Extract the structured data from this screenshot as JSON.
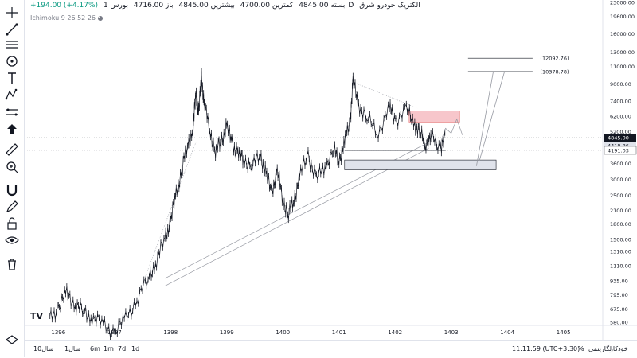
{
  "header": {
    "symbol": "الکتریک خودرو شرق",
    "interval": "1D",
    "exchange": "بورس",
    "open": "باز 4716.00",
    "high": "بیشترین 4845.00",
    "low": "کمترین 4700.00",
    "close": "بسته 4845.00",
    "change": "+194.00 (+4.17%)"
  },
  "indicator": "Ichimoku 9 26 52 26",
  "logo": "TV",
  "bottom": {
    "ranges": [
      "10سال",
      "1سال",
      "6m",
      "1m",
      "7d",
      "1d"
    ],
    "time": "11:11:59 (UTC+3:30)",
    "percent": "%",
    "log": "لگاریتمی",
    "auto": "خودکار"
  },
  "colors": {
    "up": "#131722",
    "price_label_bg": "#131722",
    "resistance_zone": "#f7c6cb",
    "support_zone": "#e0e3eb",
    "projection": "#9598a1"
  },
  "chart_data": {
    "type": "candlestick",
    "y_scale": "log",
    "ylim": [
      580,
      23000
    ],
    "x_tick_labels": [
      "1396",
      "1397",
      "1398",
      "1399",
      "1400",
      "1401",
      "1402",
      "1403",
      "1404",
      "1405"
    ],
    "y_tick_labels": [
      "23000.00",
      "19600.00",
      "16000.00",
      "13000.00",
      "11000.00",
      "9000.00",
      "7400.00",
      "6200.00",
      "5200.00",
      "4418.86",
      "3600.00",
      "3000.00",
      "2500.00",
      "2100.00",
      "1800.00",
      "1500.00",
      "1310.00",
      "1110.00",
      "935.00",
      "795.00",
      "675.00",
      "580.00"
    ],
    "last_price": "4845.00",
    "price_labels": [
      "4845.00",
      "4418.86",
      "4191.03"
    ],
    "target_labels": [
      "(12092.76)",
      "(10378.78)"
    ],
    "annotations": {
      "resistance_zone_range": [
        5800,
        6600
      ],
      "support_zone_range": [
        3350,
        3750
      ],
      "targets": [
        12092.76,
        10378.78
      ]
    },
    "path": [
      [
        1395.85,
        600
      ],
      [
        1396.0,
        700
      ],
      [
        1396.15,
        800
      ],
      [
        1396.3,
        720
      ],
      [
        1396.45,
        650
      ],
      [
        1396.6,
        620
      ],
      [
        1396.8,
        560
      ],
      [
        1397.0,
        520
      ],
      [
        1397.2,
        600
      ],
      [
        1397.4,
        760
      ],
      [
        1397.6,
        950
      ],
      [
        1397.75,
        1200
      ],
      [
        1397.9,
        1500
      ],
      [
        1398.0,
        1900
      ],
      [
        1398.1,
        2500
      ],
      [
        1398.2,
        3400
      ],
      [
        1398.3,
        4400
      ],
      [
        1398.4,
        5400
      ],
      [
        1398.45,
        8000
      ],
      [
        1398.5,
        6500
      ],
      [
        1398.55,
        9600
      ],
      [
        1398.6,
        7200
      ],
      [
        1398.7,
        5200
      ],
      [
        1398.8,
        4200
      ],
      [
        1398.9,
        4600
      ],
      [
        1399.0,
        5600
      ],
      [
        1399.1,
        4500
      ],
      [
        1399.2,
        4100
      ],
      [
        1399.3,
        3800
      ],
      [
        1399.45,
        3500
      ],
      [
        1399.6,
        4000
      ],
      [
        1399.7,
        3200
      ],
      [
        1399.8,
        2600
      ],
      [
        1399.9,
        3300
      ],
      [
        1400.0,
        2400
      ],
      [
        1400.1,
        2000
      ],
      [
        1400.2,
        2400
      ],
      [
        1400.3,
        3100
      ],
      [
        1400.45,
        4000
      ],
      [
        1400.6,
        3000
      ],
      [
        1400.75,
        3500
      ],
      [
        1400.9,
        4200
      ],
      [
        1401.0,
        3800
      ],
      [
        1401.1,
        4500
      ],
      [
        1401.2,
        6000
      ],
      [
        1401.25,
        9200
      ],
      [
        1401.35,
        7200
      ],
      [
        1401.5,
        6000
      ],
      [
        1401.7,
        5200
      ],
      [
        1401.9,
        6800
      ],
      [
        1402.0,
        6000
      ],
      [
        1402.2,
        6600
      ],
      [
        1402.35,
        5800
      ],
      [
        1402.45,
        5000
      ],
      [
        1402.55,
        4600
      ],
      [
        1402.65,
        4800
      ],
      [
        1402.8,
        4400
      ],
      [
        1402.9,
        4845
      ]
    ]
  }
}
